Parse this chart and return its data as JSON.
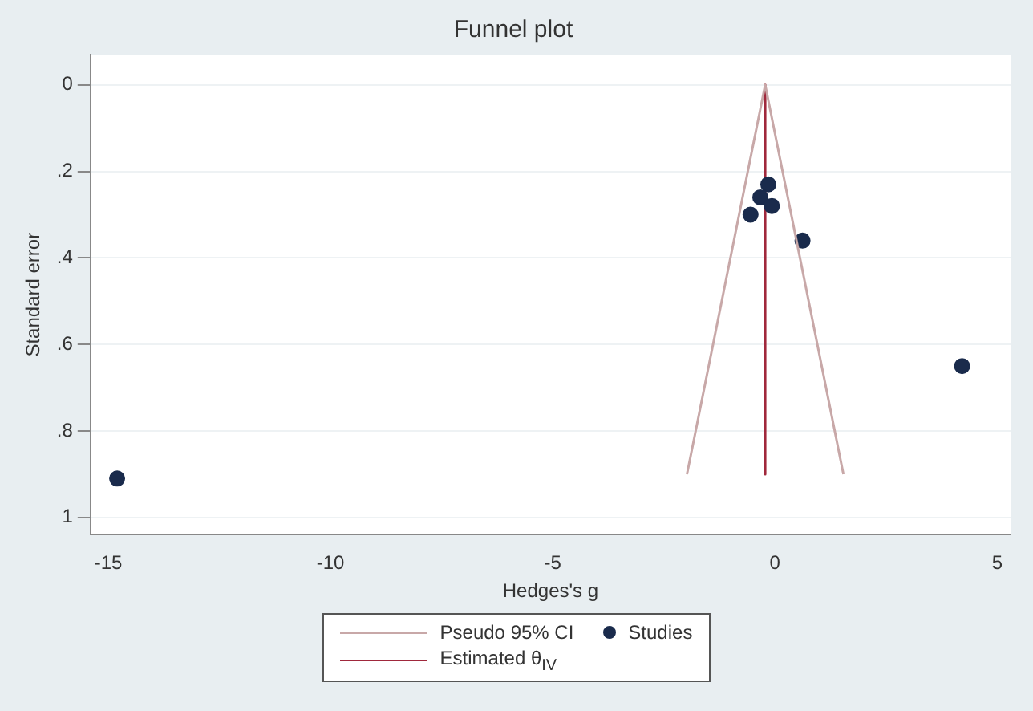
{
  "chart_data": {
    "type": "scatter",
    "title": "Funnel plot",
    "xlabel": "Hedges's g",
    "ylabel": "Standard error",
    "xlim": [
      -15.4,
      5.3
    ],
    "xticks": [
      -15,
      -10,
      -5,
      0,
      5
    ],
    "ylim": [
      1.04,
      -0.07
    ],
    "yticks": [
      {
        "value": 0,
        "label": "0"
      },
      {
        "value": 0.2,
        "label": ".2"
      },
      {
        "value": 0.4,
        "label": ".4"
      },
      {
        "value": 0.6,
        "label": ".6"
      },
      {
        "value": 0.8,
        "label": ".8"
      },
      {
        "value": 1,
        "label": "1"
      }
    ],
    "grid": "y",
    "legend": "bottom",
    "series": [
      {
        "name": "Pseudo 95% CI",
        "type": "line",
        "color": "#c8a8a8",
        "x": [
          -1.98,
          -0.22,
          1.54
        ],
        "values": [
          0.9,
          0,
          0.9
        ],
        "marker": "none"
      },
      {
        "name": "Studies",
        "type": "scatter",
        "color": "#1a2b4c",
        "marker": "circle",
        "x": [
          -0.15,
          -0.33,
          -0.07,
          -0.55,
          0.62,
          4.21,
          -14.8
        ],
        "values": [
          0.23,
          0.26,
          0.28,
          0.3,
          0.36,
          0.65,
          0.91
        ]
      },
      {
        "name": "Estimated θ$_{IV}$",
        "type": "line",
        "color": "#a0283c",
        "x": [
          -0.22,
          -0.22
        ],
        "values": [
          0,
          0.9
        ],
        "marker": "none"
      }
    ]
  }
}
